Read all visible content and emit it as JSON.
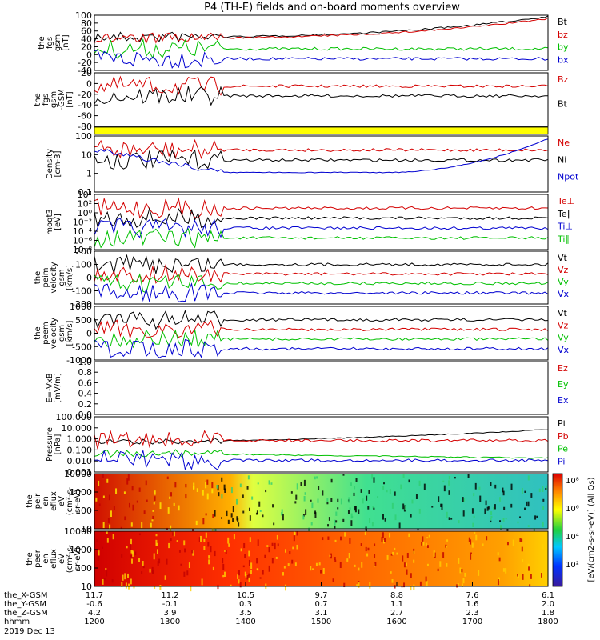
{
  "title": "P4 (TH-E) fields and on-board moments overview",
  "panels": [
    {
      "id": "fgs-gsm",
      "ylabel": [
        "the",
        "fgs",
        "gsm",
        "[nT]"
      ],
      "ticks": [
        "100",
        "80",
        "60",
        "40",
        "20",
        "0",
        "-20",
        "-40"
      ],
      "legend": [
        {
          "label": "Bt",
          "color": "#000000"
        },
        {
          "label": "bz",
          "color": "#d40000"
        },
        {
          "label": "by",
          "color": "#00c000"
        },
        {
          "label": "bx",
          "color": "#0000d0"
        }
      ]
    },
    {
      "id": "fgs-angles",
      "ylabel": [
        "the",
        "fgs",
        "gsm",
        "-GSM",
        "[nT]"
      ],
      "ticks": [
        "20",
        "0",
        "-20",
        "-40",
        "-60",
        "-80"
      ],
      "legend": [
        {
          "label": "Bz",
          "color": "#d40000"
        },
        {
          "label": "Bt",
          "color": "#000000"
        }
      ]
    },
    {
      "id": "density",
      "ylabel": [
        "Density",
        "[cm-3]"
      ],
      "ticks": [
        "100",
        "10",
        "1",
        "0.1"
      ],
      "legend": [
        {
          "label": "Ne",
          "color": "#d40000"
        },
        {
          "label": "Ni",
          "color": "#000000"
        },
        {
          "label": "Npot",
          "color": "#0000d0"
        }
      ]
    },
    {
      "id": "temperature",
      "ylabel": [
        "moqt3",
        "[eV]"
      ],
      "ticks": [
        "10⁴",
        "10²",
        "10⁰",
        "10⁻²",
        "10⁻⁴",
        "10⁻⁶",
        "10⁻⁸"
      ],
      "legend": [
        {
          "label": "Te⊥",
          "color": "#d40000"
        },
        {
          "label": "Te∥",
          "color": "#000000"
        },
        {
          "label": "Ti⊥",
          "color": "#0000d0"
        },
        {
          "label": "Ti∥",
          "color": "#00c000"
        }
      ]
    },
    {
      "id": "peim-velocity",
      "ylabel": [
        "the",
        "peim",
        "velocity",
        "gsm",
        "[km/s]"
      ],
      "ticks": [
        "200",
        "100",
        "0",
        "-100",
        "-200"
      ],
      "legend": [
        {
          "label": "Vt",
          "color": "#000000"
        },
        {
          "label": "Vz",
          "color": "#d40000"
        },
        {
          "label": "Vy",
          "color": "#00c000"
        },
        {
          "label": "Vx",
          "color": "#0000d0"
        }
      ]
    },
    {
      "id": "peem-velocity",
      "ylabel": [
        "the",
        "peem",
        "velocity",
        "gsm",
        "[km/s]"
      ],
      "ticks": [
        "1000",
        "500",
        "0",
        "-500",
        "-1000"
      ],
      "legend": [
        {
          "label": "Vt",
          "color": "#000000"
        },
        {
          "label": "Vz",
          "color": "#d40000"
        },
        {
          "label": "Vy",
          "color": "#00c000"
        },
        {
          "label": "Vx",
          "color": "#0000d0"
        }
      ]
    },
    {
      "id": "efield",
      "ylabel": [
        "E=-VxB",
        "[mV/m]"
      ],
      "ticks": [
        "1.0",
        "0.8",
        "0.6",
        "0.4",
        "0.2",
        "0.0"
      ],
      "legend": [
        {
          "label": "Ez",
          "color": "#d40000"
        },
        {
          "label": "Ey",
          "color": "#00c000"
        },
        {
          "label": "Ex",
          "color": "#0000d0"
        }
      ]
    },
    {
      "id": "pressure",
      "ylabel": [
        "Pressure",
        "[nPa]"
      ],
      "ticks": [
        "100.000",
        "10.000",
        "1.000",
        "0.100",
        "0.010",
        "0.001"
      ],
      "legend": [
        {
          "label": "Pt",
          "color": "#000000"
        },
        {
          "label": "Pb",
          "color": "#d40000"
        },
        {
          "label": "Pe",
          "color": "#00c000"
        },
        {
          "label": "Pi",
          "color": "#0000d0"
        }
      ]
    },
    {
      "id": "peir-spec",
      "ylabel": [
        "the",
        "peir",
        "en",
        "eflux",
        "eV",
        "(cm²-s-",
        "sr-eV)"
      ],
      "ticks": [
        "10000",
        "1000",
        "100",
        "10"
      ]
    },
    {
      "id": "peer-spec",
      "ylabel": [
        "the",
        "peer",
        "en",
        "eflux",
        "eV",
        "(cm²-s-",
        "sr-eV)"
      ],
      "ticks": [
        "10000",
        "1000",
        "100",
        "10"
      ]
    }
  ],
  "colorbar": {
    "label": "[eV/(cm2-s-sr-eV)] (All Qs)",
    "ticks": [
      "10⁸",
      "10⁶",
      "10⁴",
      "10²"
    ]
  },
  "xaxis": {
    "rows": [
      {
        "label": "the_X-GSM",
        "values": [
          "11.7",
          "11.2",
          "10.5",
          "9.7",
          "8.8",
          "7.6",
          "6.1"
        ]
      },
      {
        "label": "the_Y-GSM",
        "values": [
          "-0.6",
          "-0.1",
          "0.3",
          "0.7",
          "1.1",
          "1.6",
          "2.0"
        ]
      },
      {
        "label": "the_Z-GSM",
        "values": [
          "4.2",
          "3.9",
          "3.5",
          "3.1",
          "2.7",
          "2.3",
          "1.8"
        ]
      },
      {
        "label": "hhmm",
        "values": [
          "1200",
          "1300",
          "1400",
          "1500",
          "1600",
          "1700",
          "1800"
        ]
      }
    ],
    "date": "2019 Dec 13"
  },
  "chart_data": {
    "type": "line",
    "title": "P4 (TH-E) fields and on-board moments overview",
    "x": [
      "1200",
      "1300",
      "1400",
      "1500",
      "1600",
      "1700",
      "1800"
    ],
    "xlabel": "hhmm",
    "series": [
      {
        "name": "Bt",
        "values": [
          50,
          40,
          45,
          55,
          65,
          85,
          100
        ]
      },
      {
        "name": "bz",
        "values": [
          45,
          40,
          44,
          52,
          63,
          82,
          98
        ]
      },
      {
        "name": "by",
        "values": [
          5,
          5,
          3,
          2,
          0,
          0,
          0
        ]
      },
      {
        "name": "bx",
        "values": [
          -5,
          -8,
          -5,
          -2,
          5,
          10,
          25
        ]
      },
      {
        "name": "Ne",
        "values": [
          30,
          1,
          0.5,
          0.5,
          0.6,
          0.7,
          0.7
        ]
      },
      {
        "name": "Npot",
        "values": [
          60,
          2,
          0.6,
          0.8,
          1.5,
          5,
          150
        ]
      },
      {
        "name": "Pt",
        "values": [
          0.8,
          0.8,
          0.8,
          1.0,
          1.3,
          2.5,
          4.0
        ]
      },
      {
        "name": "Pe",
        "values": [
          0.05,
          0.05,
          0.07,
          0.1,
          0.1,
          0.07,
          0.03
        ]
      }
    ],
    "ylim": [
      -40,
      100
    ],
    "grid": false,
    "legend": "right"
  }
}
